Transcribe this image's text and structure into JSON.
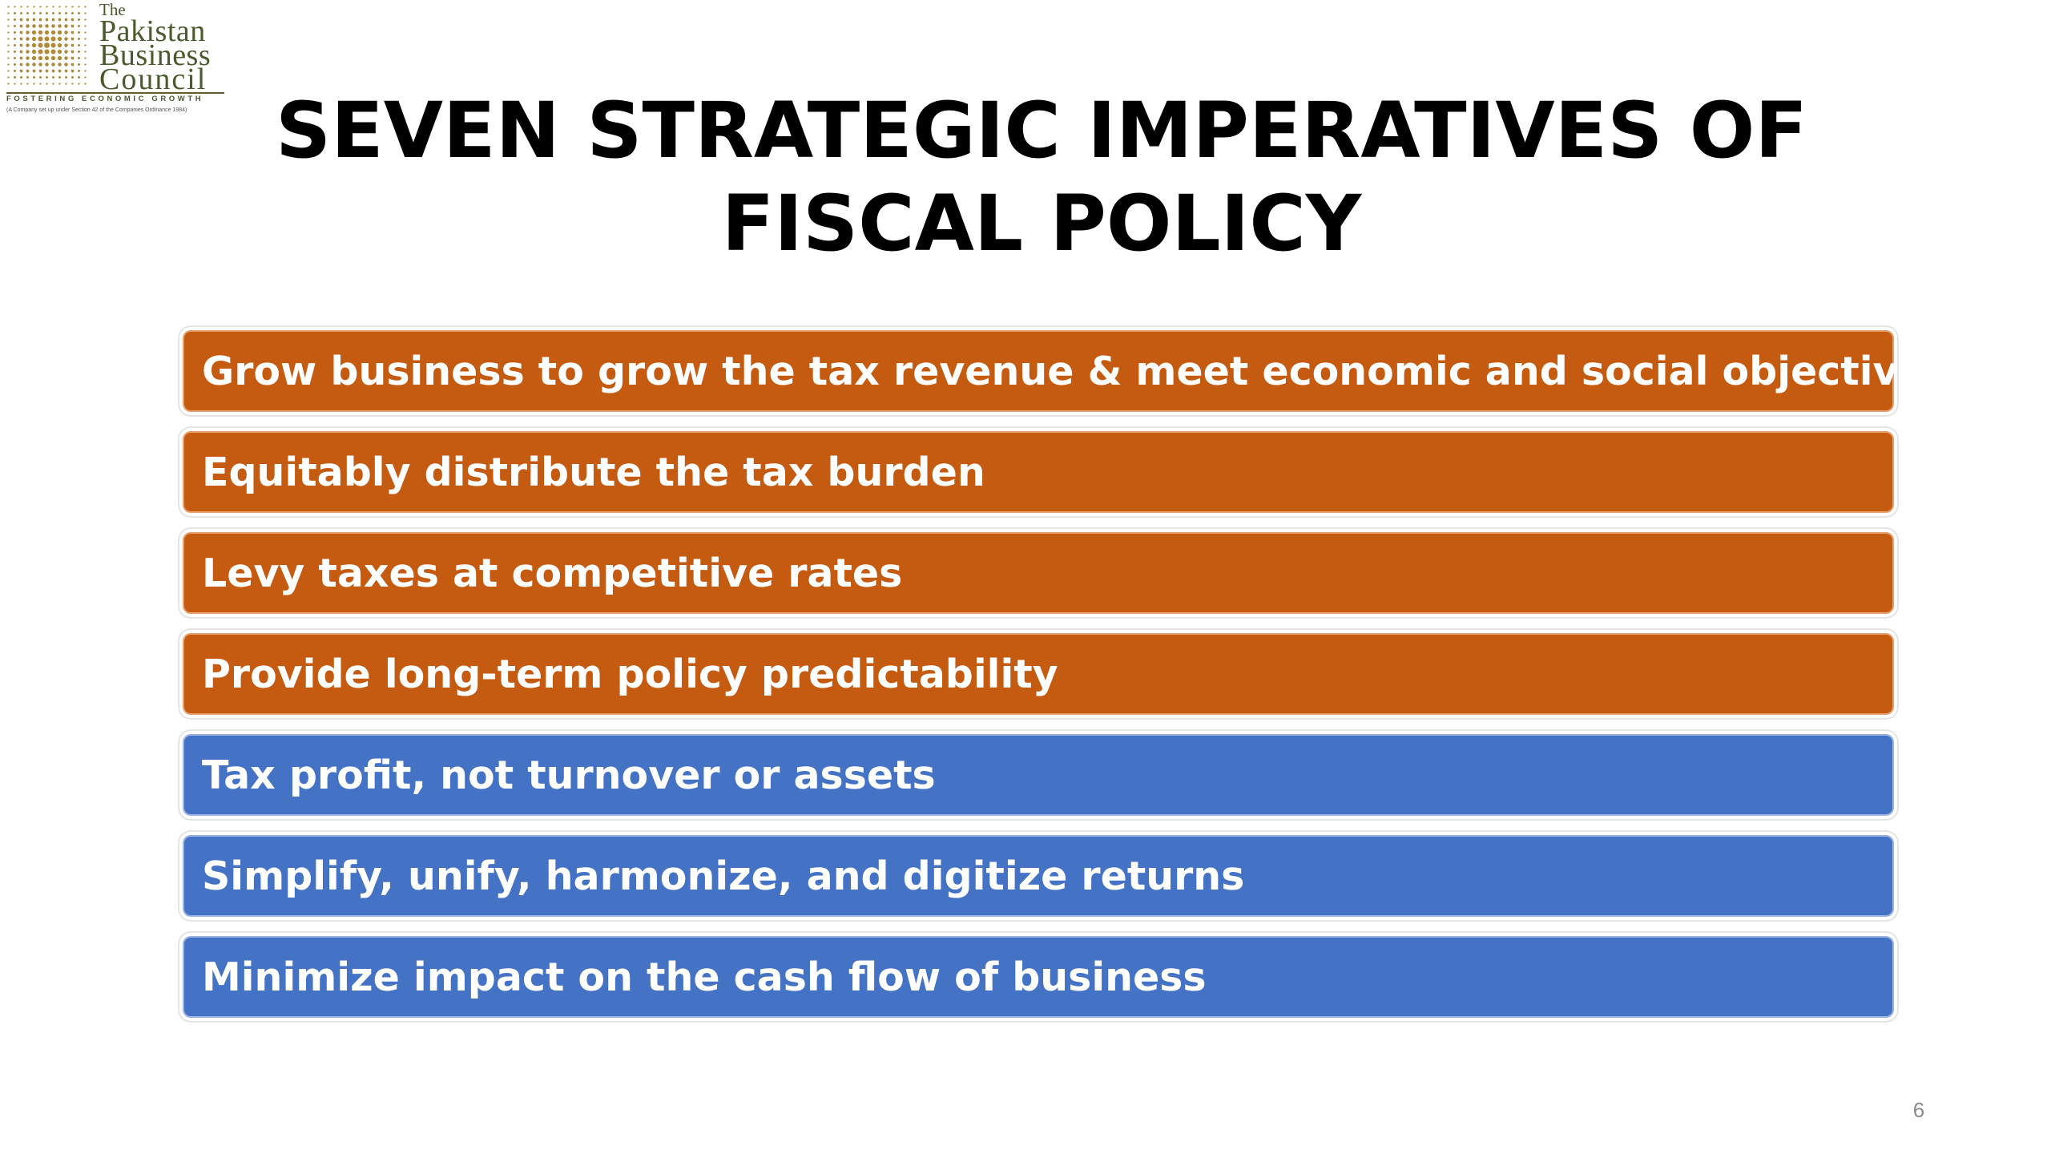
{
  "logo": {
    "the": "The",
    "line1": "Pakistan",
    "line2": "Business",
    "line3": "Council",
    "tagline": "FOSTERING ECONOMIC GROWTH",
    "note": "(A Company set up under Section 42 of the Companies Ordinance 1984)",
    "color": "#4a5a2c",
    "dot_color": "#b08a3a"
  },
  "title": {
    "line1": "SEVEN STRATEGIC IMPERATIVES OF",
    "line2": "FISCAL POLICY"
  },
  "imperatives": [
    {
      "text": "Grow business to grow the tax revenue & meet economic and social objectives",
      "color": "#c55a11"
    },
    {
      "text": "Equitably distribute the tax burden",
      "color": "#c55a11"
    },
    {
      "text": "Levy taxes at competitive rates",
      "color": "#c55a11"
    },
    {
      "text": "Provide long-term policy predictability",
      "color": "#c55a11"
    },
    {
      "text": "Tax profit, not turnover or assets",
      "color": "#4472c4"
    },
    {
      "text": "Simplify, unify, harmonize, and digitize returns",
      "color": "#4472c4"
    },
    {
      "text": "Minimize impact on the cash flow of business",
      "color": "#4472c4"
    }
  ],
  "page_number": "6"
}
